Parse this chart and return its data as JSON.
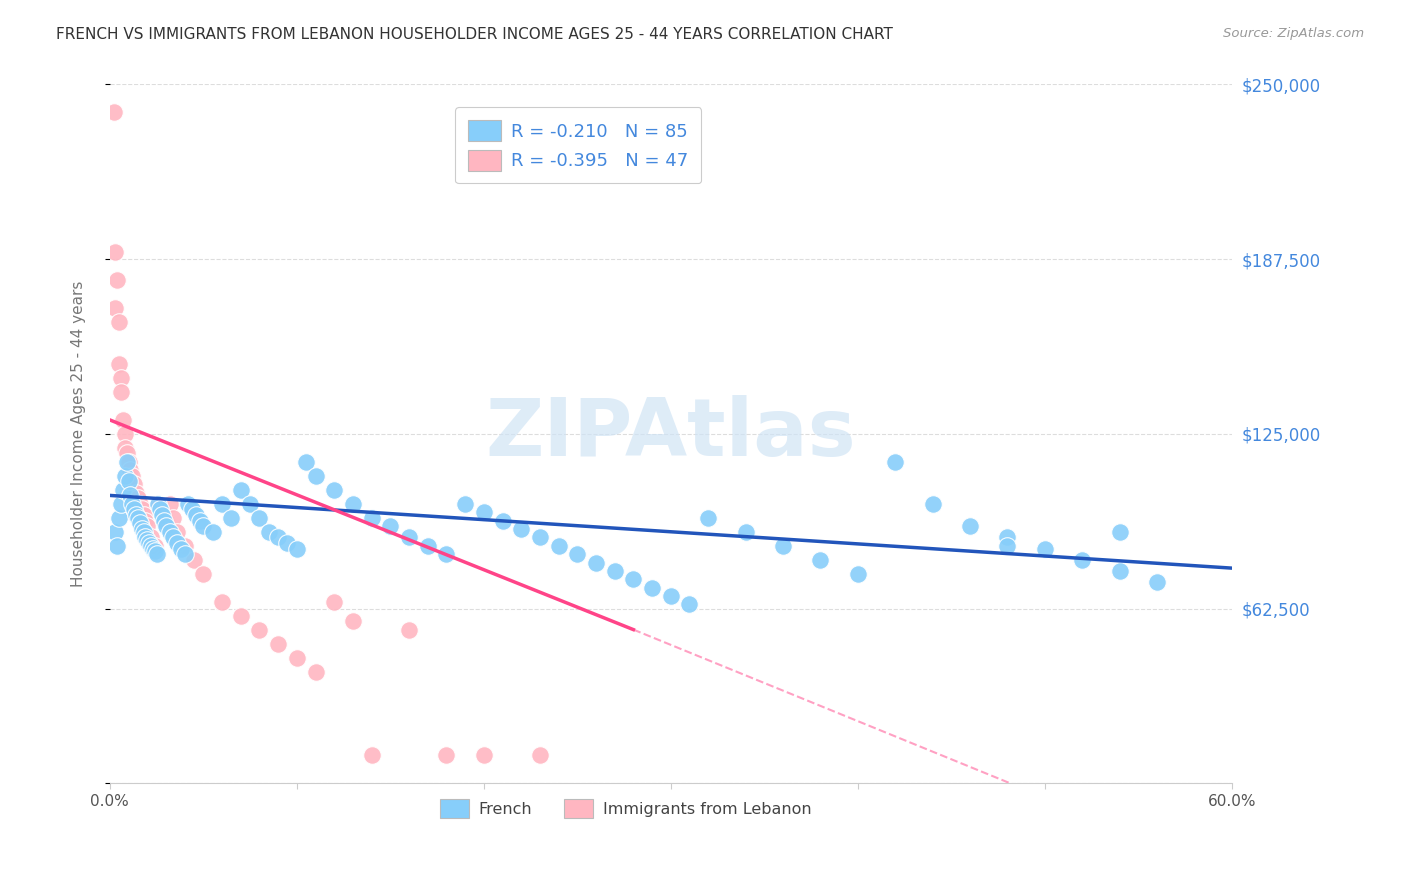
{
  "title": "FRENCH VS IMMIGRANTS FROM LEBANON HOUSEHOLDER INCOME AGES 25 - 44 YEARS CORRELATION CHART",
  "source": "Source: ZipAtlas.com",
  "ylabel": "Householder Income Ages 25 - 44 years",
  "x_min": 0.0,
  "x_max": 0.6,
  "y_min": 0,
  "y_max": 250000,
  "y_ticks": [
    0,
    62500,
    125000,
    187500,
    250000
  ],
  "y_tick_labels": [
    "",
    "$62,500",
    "$125,000",
    "$187,500",
    "$250,000"
  ],
  "x_ticks": [
    0.0,
    0.1,
    0.2,
    0.3,
    0.4,
    0.5,
    0.6
  ],
  "x_tick_labels": [
    "0.0%",
    "",
    "",
    "",
    "",
    "",
    "60.0%"
  ],
  "french_color": "#87CEFA",
  "lebanon_color": "#FFB6C1",
  "french_R": -0.21,
  "french_N": 85,
  "lebanon_R": -0.395,
  "lebanon_N": 47,
  "trend_blue_color": "#2255BB",
  "trend_pink_color": "#FF4488",
  "trend_dashed_color": "#FFB6C1",
  "background_color": "#FFFFFF",
  "title_color": "#333333",
  "axis_label_color": "#4488DD",
  "grid_color": "#DDDDDD",
  "watermark_color": "#D0E4F5",
  "french_x": [
    0.003,
    0.004,
    0.005,
    0.006,
    0.007,
    0.008,
    0.009,
    0.01,
    0.011,
    0.012,
    0.013,
    0.014,
    0.015,
    0.016,
    0.017,
    0.018,
    0.019,
    0.02,
    0.021,
    0.022,
    0.023,
    0.024,
    0.025,
    0.026,
    0.027,
    0.028,
    0.029,
    0.03,
    0.032,
    0.034,
    0.036,
    0.038,
    0.04,
    0.042,
    0.044,
    0.046,
    0.048,
    0.05,
    0.055,
    0.06,
    0.065,
    0.07,
    0.075,
    0.08,
    0.085,
    0.09,
    0.095,
    0.1,
    0.105,
    0.11,
    0.12,
    0.13,
    0.14,
    0.15,
    0.16,
    0.17,
    0.18,
    0.19,
    0.2,
    0.21,
    0.22,
    0.23,
    0.24,
    0.25,
    0.26,
    0.27,
    0.28,
    0.29,
    0.3,
    0.31,
    0.32,
    0.34,
    0.36,
    0.38,
    0.4,
    0.42,
    0.44,
    0.46,
    0.48,
    0.5,
    0.52,
    0.54,
    0.56,
    0.48,
    0.54
  ],
  "french_y": [
    90000,
    85000,
    95000,
    100000,
    105000,
    110000,
    115000,
    108000,
    103000,
    100000,
    98000,
    96000,
    95000,
    93000,
    91000,
    90000,
    88000,
    87000,
    86000,
    85000,
    84000,
    83000,
    82000,
    100000,
    98000,
    96000,
    94000,
    92000,
    90000,
    88000,
    86000,
    84000,
    82000,
    100000,
    98000,
    96000,
    94000,
    92000,
    90000,
    100000,
    95000,
    105000,
    100000,
    95000,
    90000,
    88000,
    86000,
    84000,
    115000,
    110000,
    105000,
    100000,
    95000,
    92000,
    88000,
    85000,
    82000,
    100000,
    97000,
    94000,
    91000,
    88000,
    85000,
    82000,
    79000,
    76000,
    73000,
    70000,
    67000,
    64000,
    95000,
    90000,
    85000,
    80000,
    75000,
    115000,
    100000,
    92000,
    88000,
    84000,
    80000,
    76000,
    72000,
    85000,
    90000
  ],
  "lebanon_x": [
    0.002,
    0.003,
    0.003,
    0.004,
    0.005,
    0.005,
    0.006,
    0.006,
    0.007,
    0.008,
    0.008,
    0.009,
    0.01,
    0.011,
    0.012,
    0.013,
    0.014,
    0.015,
    0.016,
    0.017,
    0.018,
    0.019,
    0.02,
    0.022,
    0.024,
    0.026,
    0.028,
    0.03,
    0.032,
    0.034,
    0.036,
    0.04,
    0.045,
    0.05,
    0.06,
    0.07,
    0.08,
    0.09,
    0.1,
    0.11,
    0.12,
    0.13,
    0.14,
    0.16,
    0.18,
    0.2,
    0.23
  ],
  "lebanon_y": [
    240000,
    190000,
    170000,
    180000,
    165000,
    150000,
    145000,
    140000,
    130000,
    125000,
    120000,
    118000,
    115000,
    112000,
    110000,
    107000,
    104000,
    102000,
    100000,
    98000,
    96000,
    94000,
    92000,
    88000,
    85000,
    100000,
    97000,
    94000,
    100000,
    95000,
    90000,
    85000,
    80000,
    75000,
    65000,
    60000,
    55000,
    50000,
    45000,
    40000,
    65000,
    58000,
    10000,
    55000,
    10000,
    10000,
    10000
  ],
  "blue_trendline_x0": 0.0,
  "blue_trendline_y0": 103000,
  "blue_trendline_x1": 0.6,
  "blue_trendline_y1": 77000,
  "pink_trendline_x0": 0.0,
  "pink_trendline_y0": 130000,
  "pink_trendline_x1": 0.28,
  "pink_trendline_y1": 55000,
  "dashed_trendline_x0": 0.28,
  "dashed_trendline_y0": 55000,
  "dashed_trendline_x1": 0.5,
  "dashed_trendline_y1": -5000
}
